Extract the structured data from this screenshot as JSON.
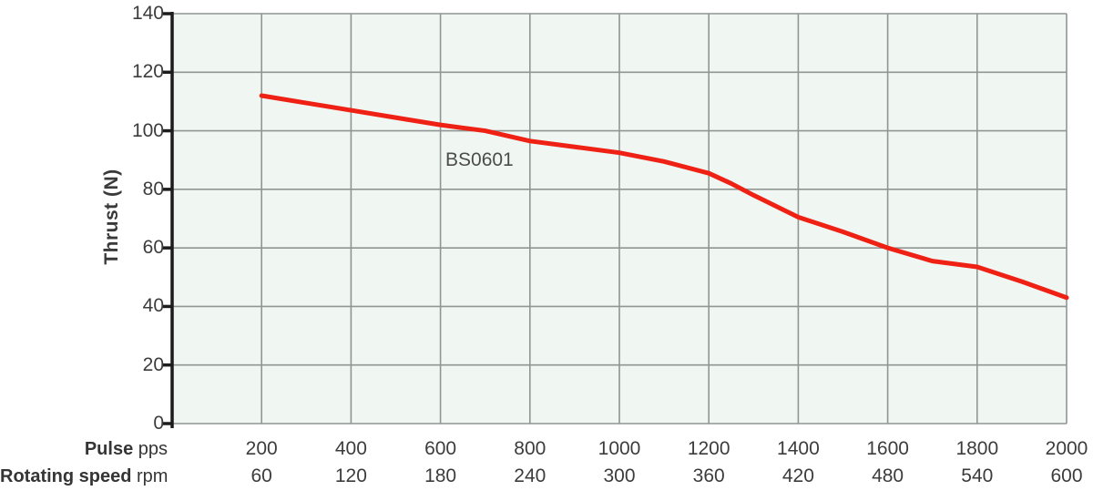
{
  "chart_data": {
    "type": "line",
    "title": "",
    "ylabel": "Thrust (N)",
    "ylim": [
      0,
      140
    ],
    "y_tick_step": 20,
    "y_ticks": [
      0,
      20,
      40,
      60,
      80,
      100,
      120,
      140
    ],
    "xlim": [
      0,
      2000
    ],
    "grid": true,
    "x_rows": [
      {
        "name": "Pulse",
        "unit": "pps",
        "ticks": [
          200,
          400,
          600,
          800,
          1000,
          1200,
          1400,
          1600,
          1800,
          2000
        ]
      },
      {
        "name": "Rotating speed",
        "unit": "rpm",
        "ticks": [
          60,
          120,
          180,
          240,
          300,
          360,
          420,
          480,
          540,
          600
        ]
      }
    ],
    "series": [
      {
        "name": "BS0601",
        "color": "#ee2114",
        "x": [
          200,
          300,
          400,
          500,
          600,
          700,
          800,
          900,
          1000,
          1100,
          1200,
          1250,
          1300,
          1400,
          1500,
          1600,
          1700,
          1800,
          1900,
          2000
        ],
        "y": [
          112,
          109.5,
          107,
          104.5,
          102,
          100,
          96.5,
          94.5,
          92.5,
          89.5,
          85.5,
          82,
          78,
          70.5,
          65.5,
          60,
          55.5,
          53.5,
          48.5,
          43
        ]
      }
    ],
    "annotation": {
      "text": "BS0601",
      "x": 690,
      "y": 89
    },
    "colors": {
      "plot_bg": "#f0f6f2",
      "grid": "#8f9693",
      "axis": "#1c1c1c",
      "text": "#3c3c3c"
    }
  }
}
